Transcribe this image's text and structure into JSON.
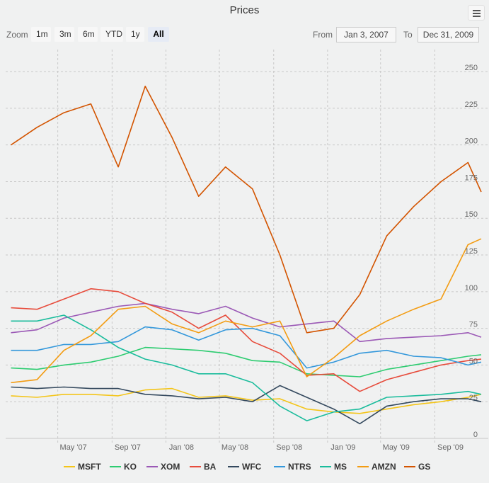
{
  "chart_data": {
    "type": "line",
    "title": "Prices",
    "xlabel": "",
    "ylabel": "",
    "x_range": [
      "2007-01-03",
      "2009-12-31"
    ],
    "ylim": [
      0,
      265
    ],
    "y_ticks": [
      0,
      25,
      50,
      75,
      100,
      125,
      150,
      175,
      200,
      225,
      250
    ],
    "x_ticks": [
      {
        "label": "May '07",
        "date": "2007-05-01"
      },
      {
        "label": "Sep '07",
        "date": "2007-09-01"
      },
      {
        "label": "Jan '08",
        "date": "2008-01-01"
      },
      {
        "label": "May '08",
        "date": "2008-05-01"
      },
      {
        "label": "Sep '08",
        "date": "2008-09-01"
      },
      {
        "label": "Jan '09",
        "date": "2009-01-01"
      },
      {
        "label": "May '09",
        "date": "2009-05-01"
      },
      {
        "label": "Sep '09",
        "date": "2009-09-01"
      }
    ],
    "grid": true,
    "legend": "bottom",
    "series": [
      {
        "name": "MSFT",
        "color": "#f4c519",
        "x": [
          "2007-01",
          "2007-03",
          "2007-05",
          "2007-07",
          "2007-09",
          "2007-11",
          "2008-01",
          "2008-03",
          "2008-05",
          "2008-07",
          "2008-09",
          "2008-11",
          "2009-01",
          "2009-03",
          "2009-05",
          "2009-07",
          "2009-09",
          "2009-11",
          "2009-12"
        ],
        "y": [
          29,
          28,
          30,
          30,
          29,
          33,
          34,
          28,
          29,
          26,
          27,
          20,
          18,
          17,
          20,
          23,
          25,
          28,
          30
        ]
      },
      {
        "name": "KO",
        "color": "#2ecc71",
        "x": [
          "2007-01",
          "2007-03",
          "2007-05",
          "2007-07",
          "2007-09",
          "2007-11",
          "2008-01",
          "2008-03",
          "2008-05",
          "2008-07",
          "2008-09",
          "2008-11",
          "2009-01",
          "2009-03",
          "2009-05",
          "2009-07",
          "2009-09",
          "2009-11",
          "2009-12"
        ],
        "y": [
          48,
          47,
          50,
          52,
          56,
          62,
          61,
          60,
          58,
          53,
          52,
          44,
          43,
          42,
          47,
          50,
          53,
          56,
          57
        ]
      },
      {
        "name": "XOM",
        "color": "#9b59b6",
        "x": [
          "2007-01",
          "2007-03",
          "2007-05",
          "2007-07",
          "2007-09",
          "2007-11",
          "2008-01",
          "2008-03",
          "2008-05",
          "2008-07",
          "2008-09",
          "2008-11",
          "2009-01",
          "2009-03",
          "2009-05",
          "2009-07",
          "2009-09",
          "2009-11",
          "2009-12"
        ],
        "y": [
          72,
          74,
          82,
          86,
          90,
          92,
          88,
          85,
          90,
          82,
          76,
          78,
          80,
          66,
          68,
          69,
          70,
          72,
          69
        ]
      },
      {
        "name": "BA",
        "color": "#e74c3c",
        "x": [
          "2007-01",
          "2007-03",
          "2007-05",
          "2007-07",
          "2007-09",
          "2007-11",
          "2008-01",
          "2008-03",
          "2008-05",
          "2008-07",
          "2008-09",
          "2008-11",
          "2009-01",
          "2009-03",
          "2009-05",
          "2009-07",
          "2009-09",
          "2009-11",
          "2009-12"
        ],
        "y": [
          89,
          88,
          95,
          102,
          100,
          92,
          86,
          75,
          84,
          66,
          58,
          43,
          44,
          32,
          40,
          45,
          50,
          53,
          54
        ]
      },
      {
        "name": "WFC",
        "color": "#34495e",
        "x": [
          "2007-01",
          "2007-03",
          "2007-05",
          "2007-07",
          "2007-09",
          "2007-11",
          "2008-01",
          "2008-03",
          "2008-05",
          "2008-07",
          "2008-09",
          "2008-11",
          "2009-01",
          "2009-03",
          "2009-05",
          "2009-07",
          "2009-09",
          "2009-11",
          "2009-12"
        ],
        "y": [
          35,
          34,
          35,
          34,
          34,
          30,
          29,
          27,
          28,
          25,
          36,
          28,
          20,
          10,
          22,
          25,
          27,
          27,
          25
        ]
      },
      {
        "name": "NTRS",
        "color": "#3498db",
        "x": [
          "2007-01",
          "2007-03",
          "2007-05",
          "2007-07",
          "2007-09",
          "2007-11",
          "2008-01",
          "2008-03",
          "2008-05",
          "2008-07",
          "2008-09",
          "2008-11",
          "2009-01",
          "2009-03",
          "2009-05",
          "2009-07",
          "2009-09",
          "2009-11",
          "2009-12"
        ],
        "y": [
          60,
          60,
          64,
          64,
          66,
          76,
          74,
          67,
          74,
          75,
          70,
          48,
          52,
          58,
          60,
          56,
          55,
          50,
          52
        ]
      },
      {
        "name": "MS",
        "color": "#1abc9c",
        "x": [
          "2007-01",
          "2007-03",
          "2007-05",
          "2007-07",
          "2007-09",
          "2007-11",
          "2008-01",
          "2008-03",
          "2008-05",
          "2008-07",
          "2008-09",
          "2008-11",
          "2009-01",
          "2009-03",
          "2009-05",
          "2009-07",
          "2009-09",
          "2009-11",
          "2009-12"
        ],
        "y": [
          80,
          80,
          84,
          74,
          62,
          54,
          50,
          44,
          44,
          38,
          22,
          12,
          18,
          20,
          28,
          29,
          30,
          32,
          30
        ]
      },
      {
        "name": "AMZN",
        "color": "#f39c12",
        "x": [
          "2007-01",
          "2007-03",
          "2007-05",
          "2007-07",
          "2007-09",
          "2007-11",
          "2008-01",
          "2008-03",
          "2008-05",
          "2008-07",
          "2008-09",
          "2008-11",
          "2009-01",
          "2009-03",
          "2009-05",
          "2009-07",
          "2009-09",
          "2009-11",
          "2009-12"
        ],
        "y": [
          38,
          40,
          60,
          70,
          88,
          90,
          78,
          72,
          80,
          76,
          80,
          42,
          55,
          70,
          80,
          88,
          95,
          132,
          136
        ]
      },
      {
        "name": "GS",
        "color": "#d35400",
        "x": [
          "2007-01",
          "2007-03",
          "2007-05",
          "2007-07",
          "2007-09",
          "2007-11",
          "2008-01",
          "2008-03",
          "2008-05",
          "2008-07",
          "2008-09",
          "2008-11",
          "2009-01",
          "2009-03",
          "2009-05",
          "2009-07",
          "2009-09",
          "2009-11",
          "2009-12"
        ],
        "y": [
          200,
          212,
          222,
          228,
          185,
          240,
          205,
          165,
          185,
          170,
          125,
          72,
          75,
          98,
          138,
          158,
          175,
          188,
          168
        ]
      }
    ]
  },
  "toolbar": {
    "zoom_label": "Zoom",
    "zoom_buttons": [
      "1m",
      "3m",
      "6m",
      "YTD",
      "1y",
      "All"
    ],
    "zoom_selected": "All",
    "from_label": "From",
    "from_value": "Jan 3, 2007",
    "to_label": "To",
    "to_value": "Dec 31, 2009"
  },
  "menu": {
    "icon": "hamburger-icon"
  }
}
